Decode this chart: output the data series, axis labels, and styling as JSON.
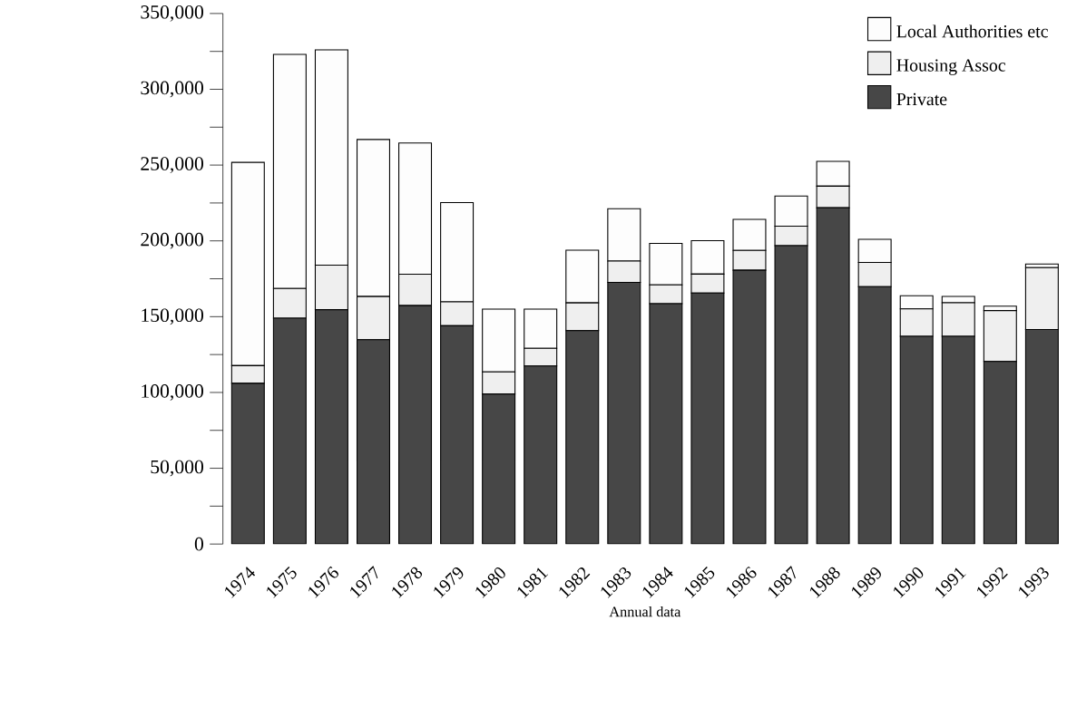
{
  "chart_data": {
    "type": "bar",
    "stacked": true,
    "xlabel": "Annual data",
    "categories": [
      "1974",
      "1975",
      "1976",
      "1977",
      "1978",
      "1979",
      "1980",
      "1981",
      "1982",
      "1983",
      "1984",
      "1985",
      "1986",
      "1987",
      "1988",
      "1989",
      "1990",
      "1991",
      "1992",
      "1993"
    ],
    "series": [
      {
        "name": "Private",
        "color": "#474747",
        "values": [
          106000,
          149000,
          154600,
          134800,
          157300,
          144000,
          99000,
          117500,
          140800,
          172600,
          158600,
          165600,
          180600,
          196800,
          221900,
          169800,
          137000,
          137000,
          120400,
          141500
        ]
      },
      {
        "name": "Housing Assoc",
        "color": "#efefef",
        "values": [
          11700,
          19600,
          29400,
          28500,
          20700,
          15800,
          14600,
          11600,
          18300,
          14100,
          12400,
          12500,
          13100,
          12900,
          14200,
          16000,
          18100,
          22200,
          33600,
          40800
        ]
      },
      {
        "name": "Local Authorities etc",
        "color": "#fdfdfd",
        "values": [
          134100,
          154400,
          142000,
          103600,
          86600,
          65400,
          41400,
          25900,
          34800,
          34500,
          27300,
          22000,
          20500,
          19900,
          16400,
          15200,
          8700,
          4200,
          2900,
          2400
        ]
      }
    ],
    "ylim": [
      0,
      350000
    ],
    "yticks": [
      0,
      {
        "value": 50000,
        "label": "50,000"
      },
      {
        "value": 100000,
        "label": "100,000"
      },
      {
        "value": 150000,
        "label": "150,000"
      },
      {
        "value": 200000,
        "label": "200,000"
      },
      {
        "value": 250000,
        "label": "250,000"
      },
      {
        "value": 300000,
        "label": "300,000"
      },
      {
        "value": 350000,
        "label": "350,000"
      }
    ],
    "grid": false,
    "legend": "top right"
  }
}
